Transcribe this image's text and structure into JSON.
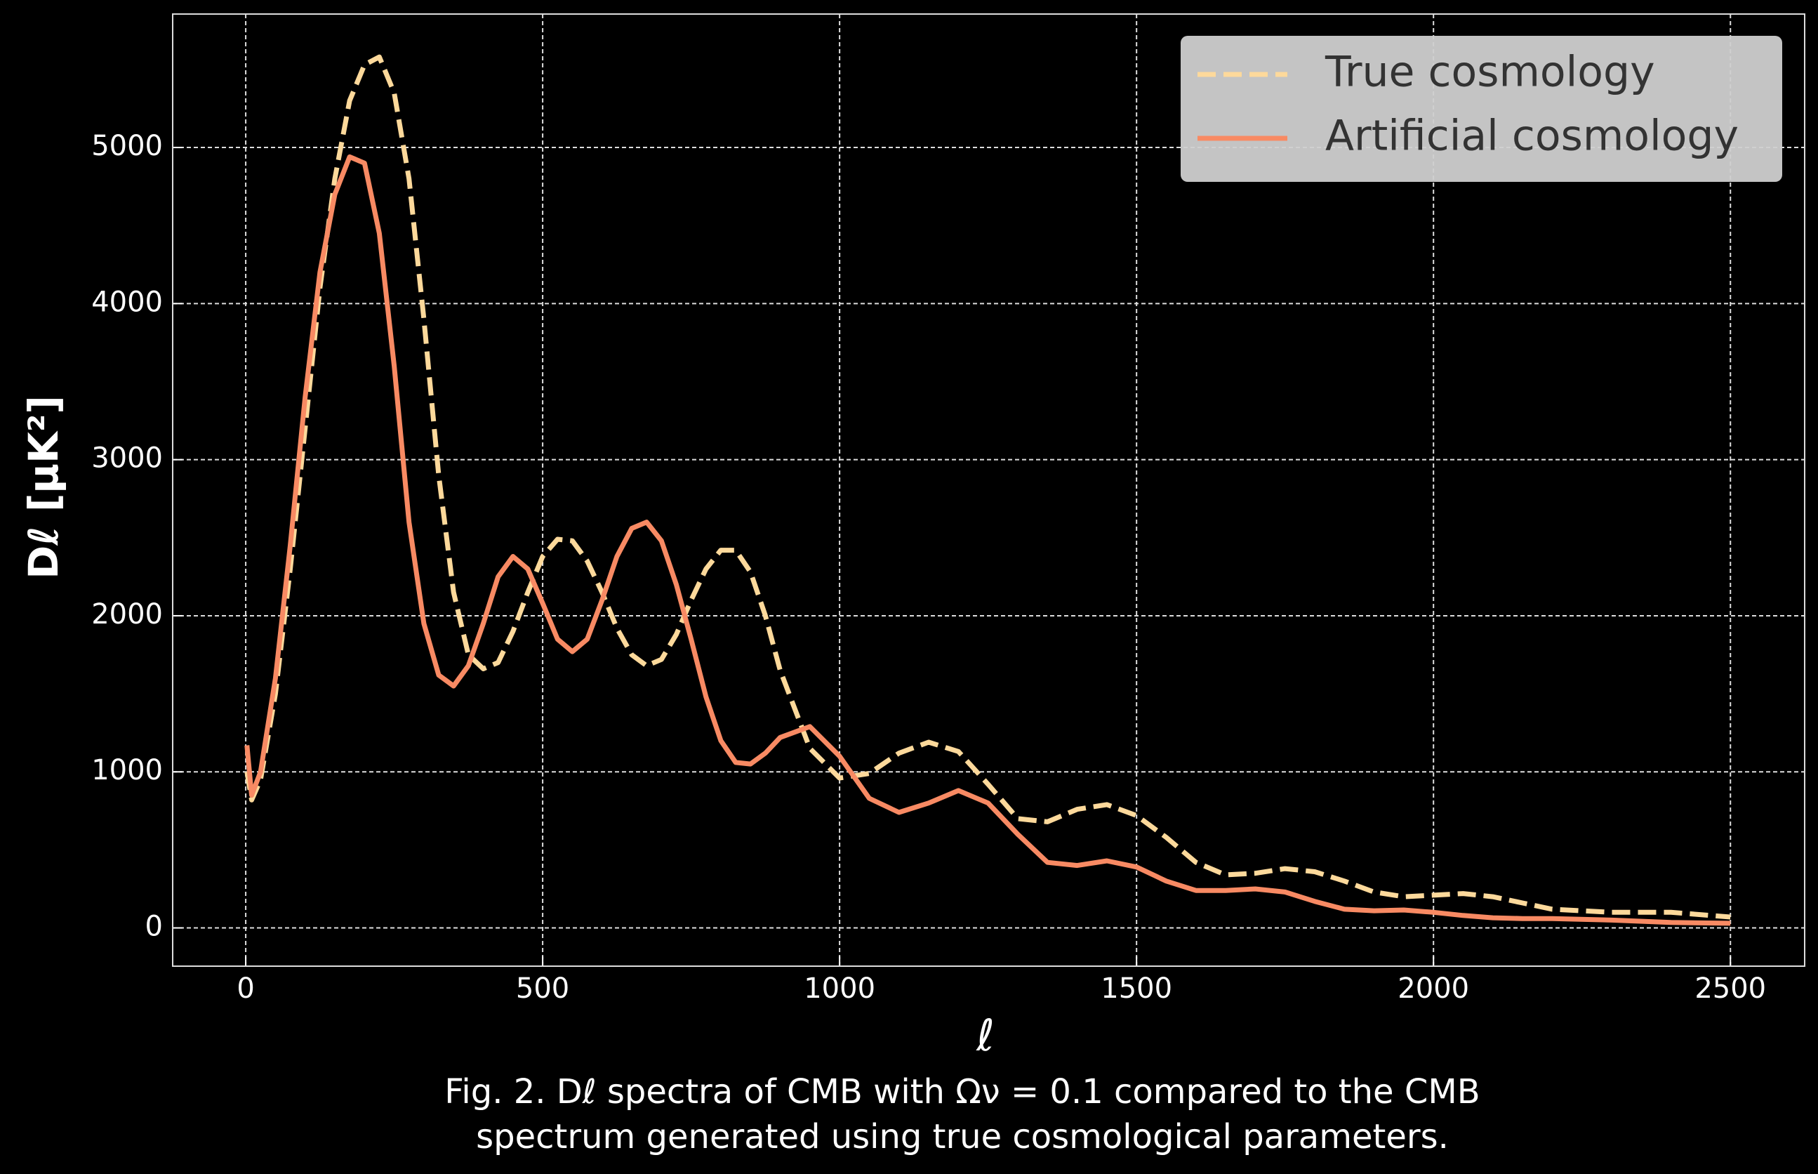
{
  "chart_data": {
    "type": "line",
    "caption": [
      "Fig. 2. Dℓ spectra of CMB with Ων = 0.1 compared to the CMB",
      "spectrum generated using true cosmological parameters."
    ],
    "xlabel": "ℓ",
    "ylabel": "Dℓ [μK²]",
    "x": [
      2,
      10,
      25,
      50,
      75,
      100,
      125,
      150,
      175,
      200,
      225,
      250,
      275,
      300,
      325,
      350,
      375,
      400,
      425,
      450,
      475,
      500,
      525,
      550,
      575,
      600,
      625,
      650,
      675,
      700,
      725,
      750,
      775,
      800,
      825,
      850,
      875,
      900,
      950,
      1000,
      1050,
      1100,
      1150,
      1200,
      1250,
      1300,
      1350,
      1400,
      1450,
      1500,
      1550,
      1600,
      1650,
      1700,
      1750,
      1800,
      1850,
      1900,
      1950,
      2000,
      2050,
      2100,
      2150,
      2200,
      2300,
      2400,
      2500
    ],
    "series": [
      {
        "name": "True cosmology",
        "color": "#fdd99b",
        "dashed": true,
        "values": [
          1000,
          820,
          950,
          1500,
          2300,
          3200,
          4100,
          4800,
          5300,
          5530,
          5580,
          5350,
          4800,
          3900,
          2900,
          2150,
          1750,
          1660,
          1700,
          1900,
          2150,
          2380,
          2490,
          2480,
          2350,
          2150,
          1920,
          1750,
          1680,
          1720,
          1880,
          2100,
          2300,
          2420,
          2420,
          2280,
          2000,
          1650,
          1150,
          960,
          990,
          1120,
          1190,
          1130,
          920,
          700,
          680,
          760,
          790,
          720,
          580,
          420,
          340,
          350,
          380,
          360,
          300,
          230,
          200,
          210,
          220,
          200,
          160,
          120,
          100,
          100,
          70
        ]
      },
      {
        "name": "Artificial cosmology",
        "color": "#f88a63",
        "dashed": false,
        "values": [
          1170,
          850,
          1000,
          1600,
          2450,
          3400,
          4200,
          4700,
          4940,
          4900,
          4450,
          3600,
          2600,
          1950,
          1620,
          1550,
          1680,
          1950,
          2250,
          2380,
          2300,
          2080,
          1850,
          1770,
          1850,
          2100,
          2380,
          2560,
          2600,
          2480,
          2200,
          1850,
          1480,
          1200,
          1060,
          1050,
          1120,
          1220,
          1290,
          1100,
          830,
          740,
          800,
          880,
          800,
          600,
          420,
          400,
          430,
          390,
          300,
          240,
          240,
          250,
          230,
          170,
          120,
          110,
          115,
          100,
          80,
          65,
          60,
          60,
          50,
          35,
          30
        ]
      }
    ],
    "xlim": [
      -123,
      2625
    ],
    "ylim": [
      -245,
      5855
    ],
    "xticks": [
      0,
      500,
      1000,
      1500,
      2000,
      2500
    ],
    "yticks": [
      0,
      1000,
      2000,
      3000,
      4000,
      5000
    ],
    "grid": true,
    "legend": "upper right"
  }
}
